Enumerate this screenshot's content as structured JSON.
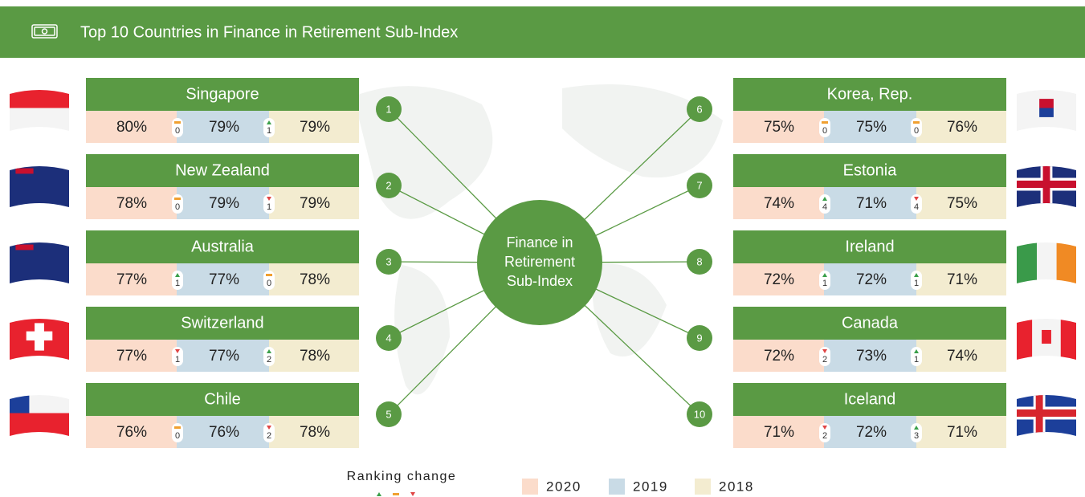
{
  "header": {
    "title": "Top 10 Countries in Finance in Retirement Sub-Index"
  },
  "center_label": "Finance in Retirement Sub-Index",
  "legend": {
    "ranking_change": "Ranking change",
    "years": [
      "2020",
      "2019",
      "2018"
    ]
  },
  "countries": [
    {
      "rank": 1,
      "name": "Singapore",
      "v2020": "80%",
      "change_a": {
        "value": 0,
        "direction": "same"
      },
      "v2019": "79%",
      "change_b": {
        "value": 1,
        "direction": "up"
      },
      "v2018": "79%"
    },
    {
      "rank": 2,
      "name": "New Zealand",
      "v2020": "78%",
      "change_a": {
        "value": 0,
        "direction": "same"
      },
      "v2019": "79%",
      "change_b": {
        "value": 1,
        "direction": "down"
      },
      "v2018": "79%"
    },
    {
      "rank": 3,
      "name": "Australia",
      "v2020": "77%",
      "change_a": {
        "value": 1,
        "direction": "up"
      },
      "v2019": "77%",
      "change_b": {
        "value": 0,
        "direction": "same"
      },
      "v2018": "78%"
    },
    {
      "rank": 4,
      "name": "Switzerland",
      "v2020": "77%",
      "change_a": {
        "value": 1,
        "direction": "down"
      },
      "v2019": "77%",
      "change_b": {
        "value": 2,
        "direction": "up"
      },
      "v2018": "78%"
    },
    {
      "rank": 5,
      "name": "Chile",
      "v2020": "76%",
      "change_a": {
        "value": 0,
        "direction": "same"
      },
      "v2019": "76%",
      "change_b": {
        "value": 2,
        "direction": "down"
      },
      "v2018": "78%"
    },
    {
      "rank": 6,
      "name": "Korea, Rep.",
      "v2020": "75%",
      "change_a": {
        "value": 0,
        "direction": "same"
      },
      "v2019": "75%",
      "change_b": {
        "value": 0,
        "direction": "same"
      },
      "v2018": "76%"
    },
    {
      "rank": 7,
      "name": "Estonia",
      "v2020": "74%",
      "change_a": {
        "value": 4,
        "direction": "up"
      },
      "v2019": "71%",
      "change_b": {
        "value": 4,
        "direction": "down"
      },
      "v2018": "75%"
    },
    {
      "rank": 8,
      "name": "Ireland",
      "v2020": "72%",
      "change_a": {
        "value": 1,
        "direction": "up"
      },
      "v2019": "72%",
      "change_b": {
        "value": 1,
        "direction": "up"
      },
      "v2018": "71%"
    },
    {
      "rank": 9,
      "name": "Canada",
      "v2020": "72%",
      "change_a": {
        "value": 2,
        "direction": "down"
      },
      "v2019": "73%",
      "change_b": {
        "value": 1,
        "direction": "up"
      },
      "v2018": "74%"
    },
    {
      "rank": 10,
      "name": "Iceland",
      "v2020": "71%",
      "change_a": {
        "value": 2,
        "direction": "down"
      },
      "v2019": "72%",
      "change_b": {
        "value": 3,
        "direction": "up"
      },
      "v2018": "71%"
    }
  ]
}
